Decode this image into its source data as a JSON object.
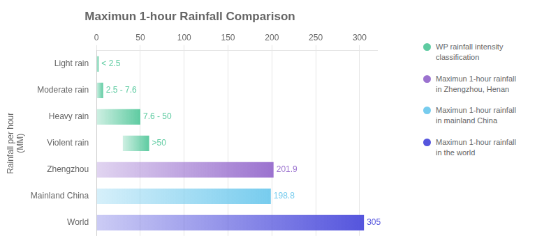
{
  "chart_data": {
    "type": "bar",
    "orientation": "horizontal",
    "title": "Maximun 1-hour Rainfall Comparison",
    "ylabel": "Rainfall per hour\n(MM)",
    "categories": [
      "Light rain",
      "Moderate rain",
      "Heavy rain",
      "Violent rain",
      "Zhengzhou",
      "Mainland China",
      "World"
    ],
    "series": [
      {
        "name": "WP rainfall intensity\nclassification",
        "color": "#5ecba1",
        "values": [
          [
            0,
            2.5
          ],
          [
            0,
            7.6
          ],
          [
            0,
            50
          ],
          [
            30,
            60
          ],
          null,
          null,
          null
        ],
        "value_labels": [
          "< 2.5",
          "2.5 - 7.6",
          "7.6 - 50",
          ">50",
          null,
          null,
          null
        ]
      },
      {
        "name": "Maximun 1-hour rainfall\nin Zhengzhou, Henan",
        "color": "#9b72cf",
        "values": [
          null,
          null,
          null,
          null,
          [
            0,
            201.9
          ],
          null,
          null
        ],
        "value_labels": [
          null,
          null,
          null,
          null,
          "201.9",
          null,
          null
        ]
      },
      {
        "name": "Maximun 1-hour rainfall\nin mainland China",
        "color": "#77ccee",
        "values": [
          null,
          null,
          null,
          null,
          null,
          [
            0,
            198.8
          ],
          null
        ],
        "value_labels": [
          null,
          null,
          null,
          null,
          null,
          "198.8",
          null
        ]
      },
      {
        "name": "Maximun 1-hour rainfall\nin the world",
        "color": "#5555dd",
        "values": [
          null,
          null,
          null,
          null,
          null,
          null,
          [
            0,
            305
          ]
        ],
        "value_labels": [
          null,
          null,
          null,
          null,
          null,
          null,
          "305"
        ]
      }
    ],
    "xlim": [
      0,
      320
    ],
    "xticks": [
      0,
      50,
      100,
      150,
      200,
      250,
      300
    ],
    "grid": true,
    "legend": "right",
    "data_labels": true
  }
}
